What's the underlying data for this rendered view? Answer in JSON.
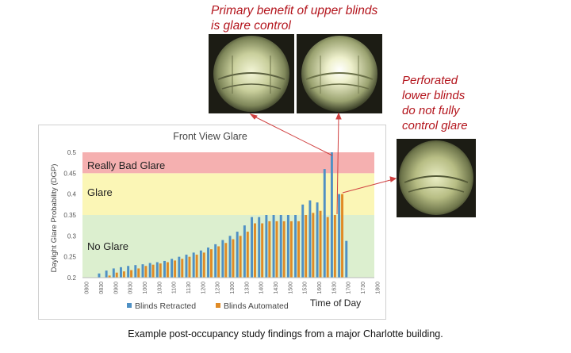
{
  "annotations": {
    "top_line1": "Primary benefit of upper blinds",
    "top_line2": "is glare control",
    "right_line1": "Perforated",
    "right_line2": "lower blinds",
    "right_line3": "do not fully",
    "right_line4": "control glare"
  },
  "caption": "Example post-occupancy study findings from a major Charlotte building.",
  "colors": {
    "retracted": "#4f90c4",
    "automated": "#e08b26",
    "zone_really_bad": "#f5b0b0",
    "zone_glare": "#fbf6b6",
    "zone_no_glare": "#dcefcf",
    "annotation": "#b3141c"
  },
  "chart_data": {
    "type": "bar",
    "title": "Front View Glare",
    "xlabel": "Time of Day",
    "ylabel": "Daylight Glare Probability (DGP)",
    "ylim": [
      0.2,
      0.5
    ],
    "yticks": [
      "0.2",
      "0.25",
      "0.3",
      "0.35",
      "0.4",
      "0.45",
      "0.5"
    ],
    "zones": [
      {
        "label": "No Glare",
        "from": 0.2,
        "to": 0.35
      },
      {
        "label": "Glare",
        "from": 0.35,
        "to": 0.45
      },
      {
        "label": "Really Bad Glare",
        "from": 0.45,
        "to": 0.5
      }
    ],
    "xtick_labels": [
      "0800",
      "0830",
      "0900",
      "0930",
      "1000",
      "1030",
      "1100",
      "1130",
      "1200",
      "1230",
      "1300",
      "1330",
      "1400",
      "1430",
      "1500",
      "1530",
      "1600",
      "1630",
      "1700",
      "1730",
      "1800"
    ],
    "categories": [
      "0800",
      "0815",
      "0830",
      "0845",
      "0900",
      "0915",
      "0930",
      "0945",
      "1000",
      "1015",
      "1030",
      "1045",
      "1100",
      "1115",
      "1130",
      "1145",
      "1200",
      "1215",
      "1230",
      "1245",
      "1300",
      "1315",
      "1330",
      "1345",
      "1400",
      "1415",
      "1430",
      "1445",
      "1500",
      "1515",
      "1530",
      "1545",
      "1600",
      "1615",
      "1630",
      "1645",
      "1700",
      "1715",
      "1730",
      "1745",
      "1800"
    ],
    "series": [
      {
        "name": "Blinds Retracted",
        "values": [
          null,
          null,
          0.21,
          0.217,
          0.222,
          0.225,
          0.228,
          0.23,
          0.232,
          0.235,
          0.237,
          0.24,
          0.245,
          0.25,
          0.255,
          0.26,
          0.265,
          0.272,
          0.28,
          0.29,
          0.3,
          0.31,
          0.325,
          0.345,
          0.345,
          0.35,
          0.35,
          0.35,
          0.35,
          0.35,
          0.375,
          0.385,
          0.38,
          0.46,
          0.5,
          0.4,
          0.288,
          null,
          null,
          null,
          null
        ]
      },
      {
        "name": "Blinds Automated",
        "values": [
          null,
          null,
          null,
          0.205,
          0.212,
          0.215,
          0.218,
          0.222,
          0.228,
          0.231,
          0.234,
          0.237,
          0.241,
          0.245,
          0.25,
          0.255,
          0.26,
          0.268,
          0.275,
          0.283,
          0.292,
          0.3,
          0.31,
          0.33,
          0.33,
          0.335,
          0.335,
          0.335,
          0.335,
          0.335,
          0.35,
          0.355,
          0.36,
          0.345,
          0.35,
          0.4,
          null,
          null,
          null,
          null,
          null
        ]
      }
    ],
    "legend_position": "bottom",
    "grid": false
  }
}
